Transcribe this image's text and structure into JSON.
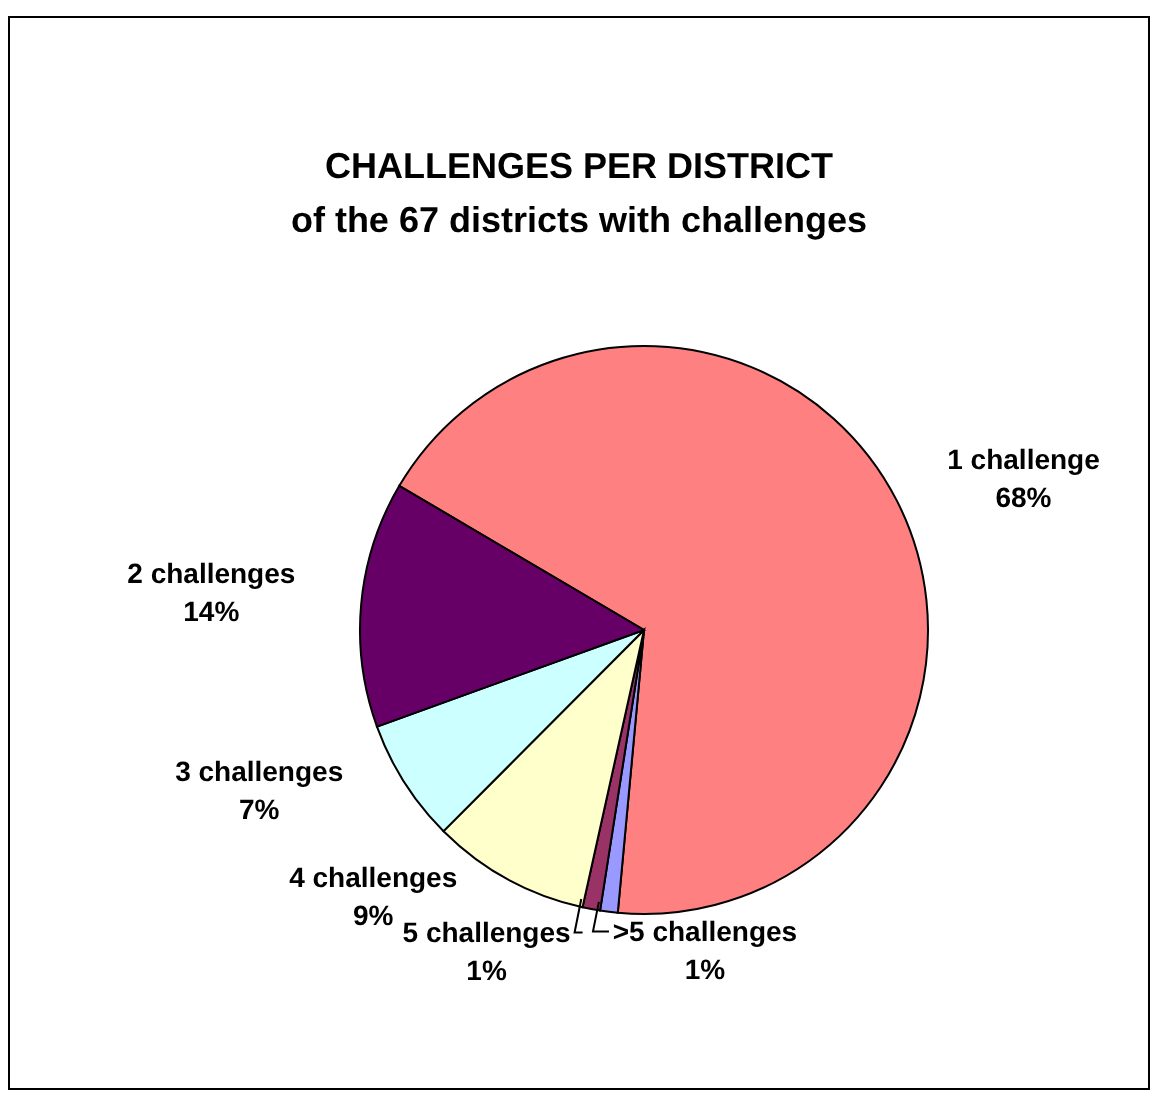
{
  "chart_data": {
    "type": "pie",
    "title": "CHALLENGES PER DISTRICT",
    "subtitle": "of the 67 districts with challenges",
    "categories": [
      "1 challenge",
      ">5 challenges",
      "5 challenges",
      "4 challenges",
      "3 challenges",
      "2 challenges"
    ],
    "values": [
      68,
      1,
      1,
      9,
      7,
      14
    ],
    "value_labels": [
      "68%",
      "1%",
      "1%",
      "9%",
      "7%",
      "14%"
    ],
    "colors": [
      "#ff8080",
      "#9999ff",
      "#993366",
      "#ffffcc",
      "#ccffff",
      "#660066"
    ],
    "legend": false
  }
}
